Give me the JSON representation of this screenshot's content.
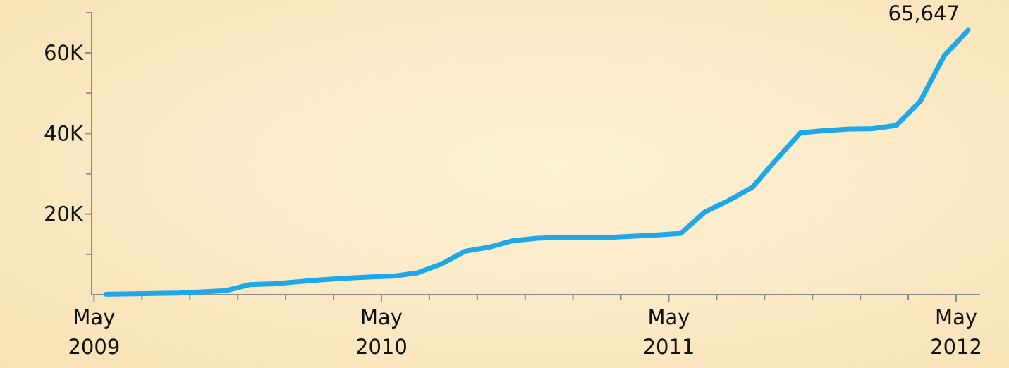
{
  "chart_data": {
    "type": "line",
    "x": [
      "2009-05",
      "2009-06",
      "2009-07",
      "2009-08",
      "2009-09",
      "2009-10",
      "2009-11",
      "2009-12",
      "2010-01",
      "2010-02",
      "2010-03",
      "2010-04",
      "2010-05",
      "2010-06",
      "2010-07",
      "2010-08",
      "2010-09",
      "2010-10",
      "2010-11",
      "2010-12",
      "2011-01",
      "2011-02",
      "2011-03",
      "2011-04",
      "2011-05",
      "2011-06",
      "2011-07",
      "2011-08",
      "2011-09",
      "2011-10",
      "2011-11",
      "2011-12",
      "2012-01",
      "2012-02",
      "2012-03",
      "2012-04",
      "2012-05"
    ],
    "series": [
      {
        "color": "#1ea8e9",
        "values": [
          100,
          200,
          300,
          400,
          700,
          1000,
          2500,
          2700,
          3200,
          3700,
          4100,
          4400,
          4600,
          5400,
          7600,
          10800,
          11800,
          13400,
          14000,
          14200,
          14100,
          14200,
          14500,
          14800,
          15200,
          20500,
          23400,
          26700,
          33600,
          40200,
          40700,
          41100,
          41200,
          42000,
          48000,
          59300,
          65647
        ]
      }
    ],
    "value_labels": [
      null,
      null,
      null,
      null,
      null,
      null,
      null,
      null,
      null,
      null,
      null,
      null,
      null,
      null,
      null,
      null,
      null,
      null,
      null,
      null,
      null,
      null,
      null,
      null,
      null,
      null,
      null,
      null,
      null,
      null,
      null,
      null,
      null,
      null,
      null,
      null,
      "65,647"
    ],
    "xlim": [
      "2009-05",
      "2012-06"
    ],
    "xticks": [
      {
        "value": "2009-05",
        "label": "May 2009"
      },
      {
        "value": "2010-05",
        "label": "May 2010"
      },
      {
        "value": "2011-05",
        "label": "May 2011"
      },
      {
        "value": "2012-05",
        "label": "May 2012"
      }
    ],
    "xminor_ticks": [
      "2009-07",
      "2009-09",
      "2009-11",
      "2010-01",
      "2010-03",
      "2010-07",
      "2010-09",
      "2010-11",
      "2011-01",
      "2011-03",
      "2011-07",
      "2011-09",
      "2011-11",
      "2012-01",
      "2012-03"
    ],
    "ylim": [
      0,
      70000
    ],
    "yticks": [
      {
        "value": 20000,
        "label": "20K"
      },
      {
        "value": 40000,
        "label": "40K"
      },
      {
        "value": 60000,
        "label": "60K"
      }
    ],
    "yminor_ticks": [
      10000,
      30000,
      50000,
      70000
    ]
  }
}
